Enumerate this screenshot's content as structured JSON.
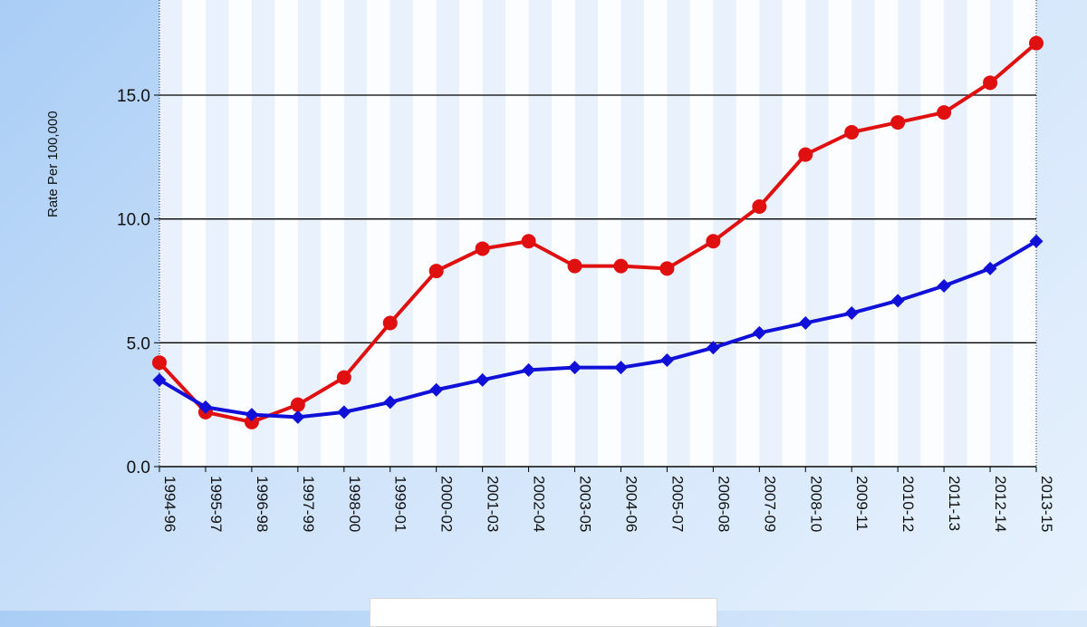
{
  "chart_data": {
    "type": "line",
    "ylabel": "Rate Per 100,000",
    "ylim": [
      0,
      18
    ],
    "yticks": [
      "0.0",
      "5.0",
      "10.0",
      "15.0"
    ],
    "ytick_values": [
      0,
      5,
      10,
      15
    ],
    "grid": true,
    "categories": [
      "1994-96",
      "1995-97",
      "1996-98",
      "1997-99",
      "1998-00",
      "1999-01",
      "2000-02",
      "2001-03",
      "2002-04",
      "2003-05",
      "2004-06",
      "2005-07",
      "2006-08",
      "2007-09",
      "2008-10",
      "2009-11",
      "2010-12",
      "2011-13",
      "2012-14",
      "2013-15"
    ],
    "series": [
      {
        "color": "#e01010",
        "marker": "circle",
        "values": [
          4.2,
          2.2,
          1.8,
          2.5,
          3.6,
          5.8,
          7.9,
          8.8,
          9.1,
          8.1,
          8.1,
          8.0,
          9.1,
          10.5,
          12.6,
          13.5,
          13.9,
          14.3,
          15.5,
          17.1
        ]
      },
      {
        "color": "#1010d8",
        "marker": "diamond",
        "values": [
          3.5,
          2.4,
          2.1,
          2.0,
          2.2,
          2.6,
          3.1,
          3.5,
          3.9,
          4.0,
          4.0,
          4.3,
          4.8,
          5.4,
          5.8,
          6.2,
          6.7,
          7.3,
          8.0,
          9.1
        ]
      }
    ]
  }
}
